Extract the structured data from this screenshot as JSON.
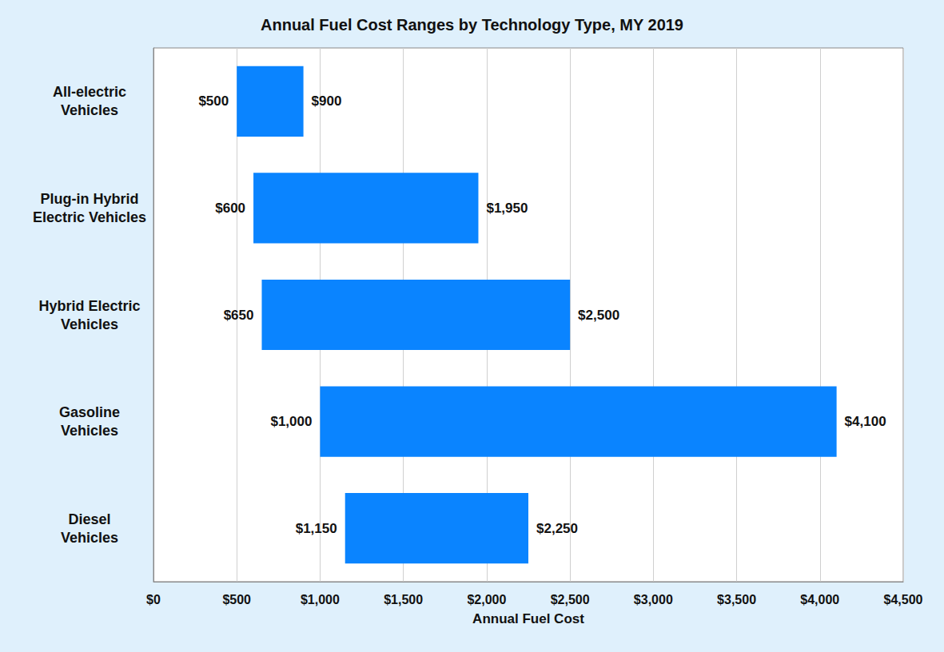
{
  "chart_data": {
    "type": "bar",
    "orientation": "horizontal",
    "title": "Annual Fuel Cost Ranges by Technology Type, MY 2019",
    "xlabel": "Annual Fuel Cost",
    "categories": [
      "All-electric\nVehicles",
      "Plug-in Hybrid\nElectric Vehicles",
      "Hybrid Electric\nVehicles",
      "Gasoline\nVehicles",
      "Diesel\nVehicles"
    ],
    "values": [
      [
        500,
        900
      ],
      [
        600,
        1950
      ],
      [
        650,
        2500
      ],
      [
        1000,
        4100
      ],
      [
        1150,
        2250
      ]
    ],
    "value_labels": [
      [
        "$500",
        "$900"
      ],
      [
        "$600",
        "$1,950"
      ],
      [
        "$650",
        "$2,500"
      ],
      [
        "$1,000",
        "$4,100"
      ],
      [
        "$1,150",
        "$2,250"
      ]
    ],
    "color": "#0a84ff",
    "xlim": [
      0,
      4500
    ],
    "xticks": [
      {
        "value": 0,
        "label": "$0"
      },
      {
        "value": 500,
        "label": "$500"
      },
      {
        "value": 1000,
        "label": "$1,000"
      },
      {
        "value": 1500,
        "label": "$1,500"
      },
      {
        "value": 2000,
        "label": "$2,000"
      },
      {
        "value": 2500,
        "label": "$2,500"
      },
      {
        "value": 3000,
        "label": "$3,000"
      },
      {
        "value": 3500,
        "label": "$3,500"
      },
      {
        "value": 4000,
        "label": "$4,000"
      },
      {
        "value": 4500,
        "label": "$4,500"
      }
    ],
    "grid": true,
    "data_labels": true
  }
}
